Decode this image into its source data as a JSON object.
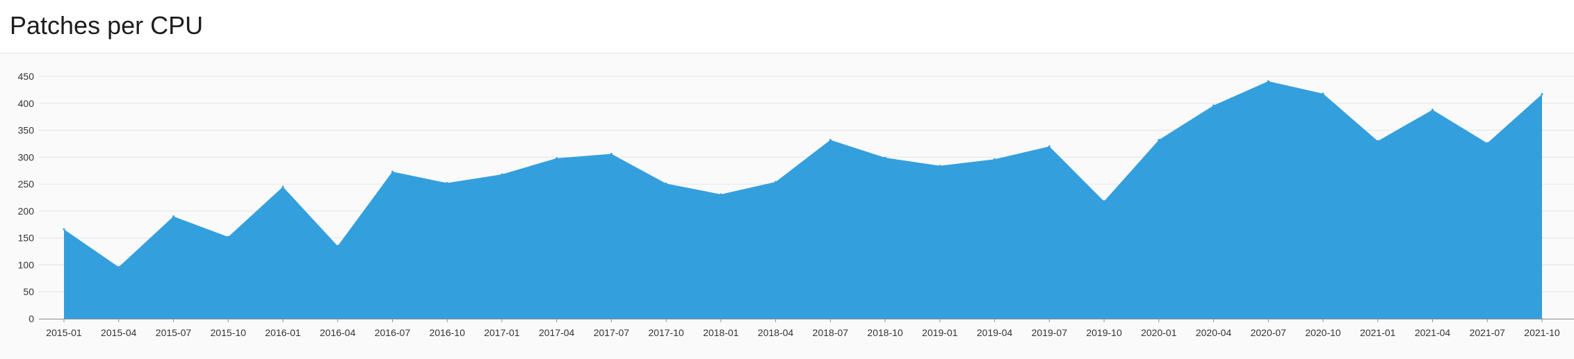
{
  "page": {
    "title": "Patches per CPU"
  },
  "chart_data": {
    "type": "area",
    "title": "Patches per CPU",
    "xlabel": "",
    "ylabel": "",
    "ylim": [
      0,
      450
    ],
    "yticks": [
      0,
      50,
      100,
      150,
      200,
      250,
      300,
      350,
      400,
      450
    ],
    "grid": true,
    "color": "#349fdd",
    "categories": [
      "2015-01",
      "2015-04",
      "2015-07",
      "2015-10",
      "2016-01",
      "2016-04",
      "2016-07",
      "2016-10",
      "2017-01",
      "2017-04",
      "2017-07",
      "2017-10",
      "2018-01",
      "2018-04",
      "2018-07",
      "2018-10",
      "2019-01",
      "2019-04",
      "2019-07",
      "2019-10",
      "2020-01",
      "2020-04",
      "2020-07",
      "2020-10",
      "2021-01",
      "2021-04",
      "2021-07",
      "2021-10"
    ],
    "series": [
      {
        "values": [
          166,
          96,
          190,
          152,
          245,
          135,
          273,
          252,
          268,
          298,
          306,
          251,
          231,
          254,
          332,
          299,
          284,
          296,
          320,
          218,
          332,
          396,
          441,
          418,
          330,
          388,
          326,
          417
        ]
      }
    ]
  }
}
